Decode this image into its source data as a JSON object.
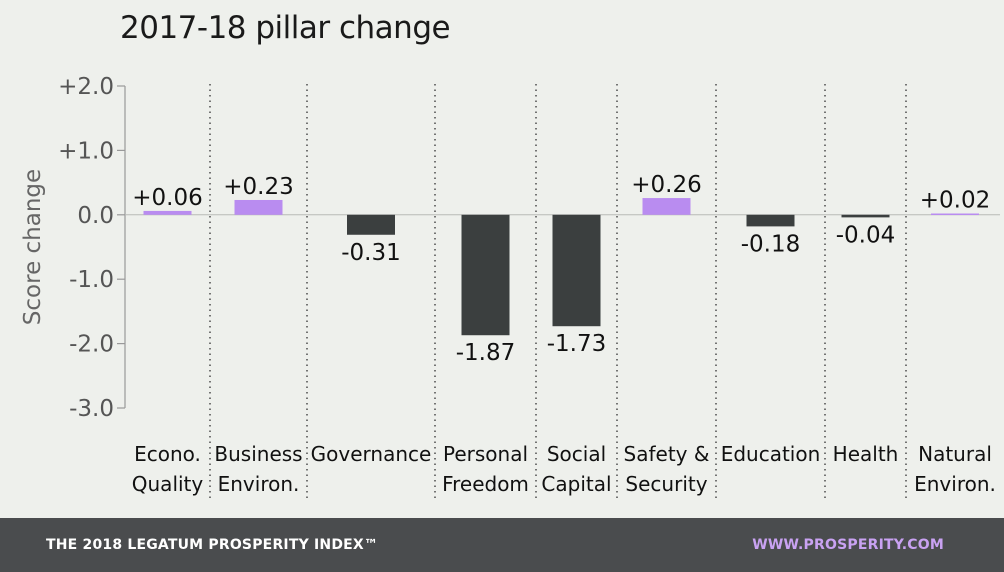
{
  "chart_data": {
    "type": "bar",
    "title": "2017-18 pillar change",
    "ylabel": "Score change",
    "xlabel": "",
    "ylim": [
      -3.0,
      2.0
    ],
    "yticks": [
      "+2.0",
      "+1.0",
      "0.0",
      "-1.0",
      "-2.0",
      "-3.0"
    ],
    "ytick_values": [
      2,
      1,
      0,
      -1,
      -2,
      -3
    ],
    "categories": [
      [
        "Econo.",
        "Quality"
      ],
      [
        "Business",
        "Environ."
      ],
      [
        "Governance"
      ],
      [
        "Personal",
        "Freedom"
      ],
      [
        "Social",
        "Capital"
      ],
      [
        "Safety &",
        "Security"
      ],
      [
        "Education"
      ],
      [
        "Health"
      ],
      [
        "Natural",
        "Environ."
      ]
    ],
    "values": [
      0.06,
      0.23,
      -0.31,
      -1.87,
      -1.73,
      0.26,
      -0.18,
      -0.04,
      0.02
    ],
    "data_labels": [
      "+0.06",
      "+0.23",
      "-0.31",
      "-1.87",
      "-1.73",
      "+0.26",
      "-0.18",
      "-0.04",
      "+0.02"
    ],
    "colors": {
      "positive": "#b98cf0",
      "negative": "#3b3f3f",
      "axis": "#999999",
      "divider": "#555555"
    },
    "grid": false,
    "legend": "none"
  },
  "footer": {
    "left": "THE 2018 LEGATUM PROSPERITY INDEX™",
    "right": "WWW.PROSPERITY.COM"
  }
}
